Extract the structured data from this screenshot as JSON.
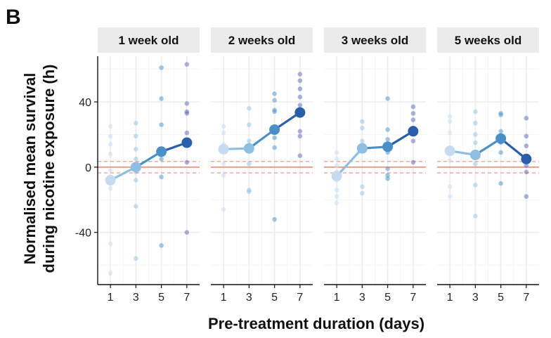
{
  "panel_letter": "B",
  "chart_data": {
    "type": "scatter",
    "title": "",
    "xlabel": "Pre-treatment duration (days)",
    "ylabel_line1": "Normalised mean survival",
    "ylabel_line2": "during nicotine exposure (h)",
    "x_ticks": [
      1,
      3,
      5,
      7
    ],
    "y_ticks": [
      -40,
      0,
      40
    ],
    "x_tick_labels": [
      "1",
      "3",
      "5",
      "7"
    ],
    "y_tick_labels": [
      "-40",
      "0",
      "40"
    ],
    "xlim": [
      0,
      8
    ],
    "ylim": [
      -72,
      68
    ],
    "reference_lines": {
      "solid": 0,
      "dashed": [
        -3.5,
        3.5
      ]
    },
    "colors": {
      "day1": "#c6dbef",
      "day3": "#8fbfe0",
      "day5": "#4a90c8",
      "day7": "#2b5ea8",
      "raw7": "#5a63b5",
      "ref": "#e8786a"
    },
    "facets": [
      {
        "label": "1 week old",
        "means": [
          {
            "x": 1,
            "y": -8
          },
          {
            "x": 3,
            "y": 0
          },
          {
            "x": 5,
            "y": 9.5
          },
          {
            "x": 7,
            "y": 15
          }
        ],
        "raw": [
          {
            "x": 1,
            "ys": [
              25,
              19,
              14,
              8,
              -2,
              -13,
              -47,
              -65
            ]
          },
          {
            "x": 3,
            "ys": [
              27,
              19,
              11,
              5,
              -3,
              -8,
              -24,
              -56
            ]
          },
          {
            "x": 5,
            "ys": [
              61,
              42,
              26,
              10,
              5,
              -6,
              -48
            ]
          },
          {
            "x": 7,
            "ys": [
              63,
              39,
              34,
              33,
              21,
              15,
              3,
              -40
            ]
          }
        ]
      },
      {
        "label": "2 weeks old",
        "means": [
          {
            "x": 1,
            "y": 11
          },
          {
            "x": 3,
            "y": 11.5
          },
          {
            "x": 5,
            "y": 23
          },
          {
            "x": 7,
            "y": 33.5
          }
        ],
        "raw": [
          {
            "x": 1,
            "ys": [
              25,
              21,
              14,
              10,
              2,
              -5,
              -26
            ]
          },
          {
            "x": 3,
            "ys": [
              36,
              26,
              16,
              12,
              2,
              -14,
              -15
            ]
          },
          {
            "x": 5,
            "ys": [
              45,
              41,
              35,
              34,
              23,
              18,
              12,
              -32
            ]
          },
          {
            "x": 7,
            "ys": [
              57,
              53,
              48,
              43,
              38,
              34,
              22,
              19,
              7
            ]
          }
        ]
      },
      {
        "label": "3 weeks old",
        "means": [
          {
            "x": 1,
            "y": -5.5
          },
          {
            "x": 3,
            "y": 11.5
          },
          {
            "x": 5,
            "y": 12.5
          },
          {
            "x": 7,
            "y": 22
          }
        ],
        "raw": [
          {
            "x": 1,
            "ys": [
              9,
              5,
              1,
              -3,
              -8,
              -14,
              -18,
              -22
            ]
          },
          {
            "x": 3,
            "ys": [
              28,
              24,
              16,
              12,
              -12,
              -16
            ]
          },
          {
            "x": 5,
            "ys": [
              42,
              23,
              17,
              14,
              9,
              -1,
              -5,
              -7
            ]
          },
          {
            "x": 7,
            "ys": [
              37,
              33,
              29,
              24,
              16,
              3
            ]
          }
        ]
      },
      {
        "label": "5 weeks old",
        "means": [
          {
            "x": 1,
            "y": 10
          },
          {
            "x": 3,
            "y": 7.5
          },
          {
            "x": 5,
            "y": 17.5
          },
          {
            "x": 7,
            "y": 5
          }
        ],
        "raw": [
          {
            "x": 1,
            "ys": [
              31,
              28,
              21,
              11,
              4,
              -12,
              -18
            ]
          },
          {
            "x": 3,
            "ys": [
              34,
              27,
              20,
              15,
              2,
              -11,
              -30
            ]
          },
          {
            "x": 5,
            "ys": [
              33,
              32,
              22,
              18,
              15,
              9,
              -10
            ]
          },
          {
            "x": 7,
            "ys": [
              30,
              19,
              13,
              5,
              1,
              -3,
              -18
            ]
          }
        ]
      }
    ]
  }
}
